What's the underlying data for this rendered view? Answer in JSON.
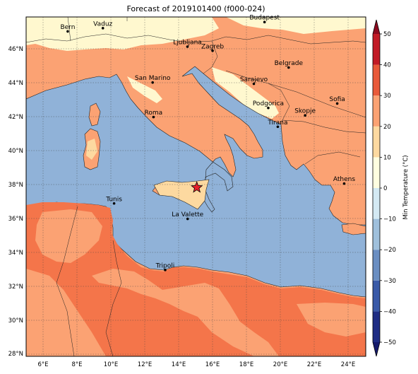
{
  "title": "Forecast of 2019101400 (f000-024)",
  "lon_ticks": [
    "6°E",
    "8°E",
    "10°E",
    "12°E",
    "14°E",
    "16°E",
    "18°E",
    "20°E",
    "22°E",
    "24°E"
  ],
  "lat_ticks": [
    "46°N",
    "44°N",
    "42°N",
    "40°N",
    "38°N",
    "36°N",
    "34°N",
    "32°N",
    "30°N",
    "28°N"
  ],
  "cities": [
    {
      "name": "Bern",
      "lon": 7.45,
      "lat": 46.95
    },
    {
      "name": "Vaduz",
      "lon": 9.52,
      "lat": 47.14
    },
    {
      "name": "Budapest",
      "lon": 19.04,
      "lat": 47.5
    },
    {
      "name": "Ljubljana",
      "lon": 14.5,
      "lat": 46.05
    },
    {
      "name": "Zagreb",
      "lon": 15.98,
      "lat": 45.81
    },
    {
      "name": "Belgrade",
      "lon": 20.46,
      "lat": 44.82
    },
    {
      "name": "San Marino",
      "lon": 12.45,
      "lat": 43.94
    },
    {
      "name": "Sarajevo",
      "lon": 18.41,
      "lat": 43.86
    },
    {
      "name": "Sofia",
      "lon": 23.32,
      "lat": 42.7
    },
    {
      "name": "Podgorica",
      "lon": 19.26,
      "lat": 42.44
    },
    {
      "name": "Skopje",
      "lon": 21.43,
      "lat": 42.0
    },
    {
      "name": "Roma",
      "lon": 12.5,
      "lat": 41.9
    },
    {
      "name": "Tirana",
      "lon": 19.82,
      "lat": 41.33
    },
    {
      "name": "Athens",
      "lon": 23.73,
      "lat": 37.98
    },
    {
      "name": "Tunis",
      "lon": 10.18,
      "lat": 36.81
    },
    {
      "name": "La Valette",
      "lon": 14.51,
      "lat": 35.9
    },
    {
      "name": "Tripoli",
      "lon": 13.19,
      "lat": 32.89
    }
  ],
  "marker": {
    "lon": 15.05,
    "lat": 37.75
  },
  "colorbar": {
    "label": "Min Temperature (°C)",
    "ticks": [
      "50",
      "40",
      "30",
      "20",
      "10",
      "0",
      "−10",
      "−20",
      "−30",
      "−40",
      "−50"
    ],
    "levels": [
      {
        "from": -50,
        "to": -40,
        "color": "#1f2d84"
      },
      {
        "from": -40,
        "to": -30,
        "color": "#3a5aa8"
      },
      {
        "from": -30,
        "to": -20,
        "color": "#6a8ec2"
      },
      {
        "from": -20,
        "to": -10,
        "color": "#9fc0dc"
      },
      {
        "from": -10,
        "to": 0,
        "color": "#d4e9f3"
      },
      {
        "from": 0,
        "to": 10,
        "color": "#fffee0"
      },
      {
        "from": 10,
        "to": 20,
        "color": "#fdd9a0"
      },
      {
        "from": 20,
        "to": 30,
        "color": "#fba273"
      },
      {
        "from": 30,
        "to": 40,
        "color": "#e95a3a"
      },
      {
        "from": 40,
        "to": 50,
        "color": "#c21b26"
      }
    ],
    "extend_low": "#151a6b",
    "extend_high": "#8c0a1f"
  },
  "colors": {
    "sea": "#90b2d8",
    "warm": "#fba273",
    "hot": "#f4754a",
    "cool": "#fff8cf"
  }
}
